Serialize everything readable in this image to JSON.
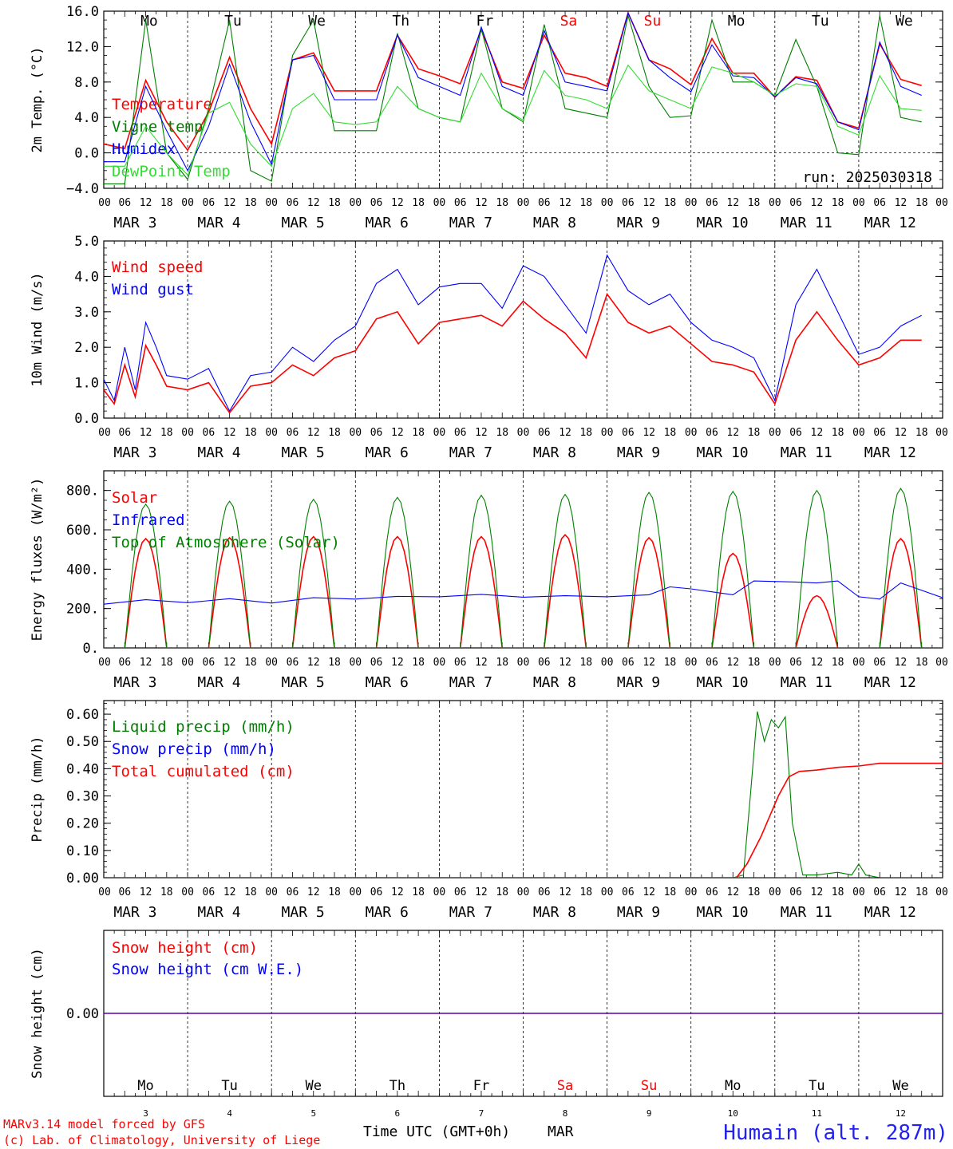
{
  "footer": {
    "model_line": "MARv3.14 model forced by GFS",
    "lab_line": "(c) Lab. of Climatology, University of Liege",
    "time_axis_label": "Time UTC (GMT+0h)",
    "month_label": "MAR",
    "station": "Humain (alt. 287m)"
  },
  "run_label": "run: 2025030318",
  "colors": {
    "red": "#ff0000",
    "green": "#008000",
    "blue": "#0000ff",
    "lightgreen": "#33dd33",
    "grid": "#000000",
    "station": "#2222ee"
  },
  "days": {
    "labels": [
      "Mo",
      "Tu",
      "We",
      "Th",
      "Fr",
      "Sa",
      "Su",
      "Mo",
      "Tu",
      "We"
    ],
    "weekend": [
      false,
      false,
      false,
      false,
      false,
      true,
      true,
      false,
      false,
      false
    ],
    "dates": [
      "MAR 3",
      "MAR 4",
      "MAR 5",
      "MAR 6",
      "MAR 7",
      "MAR 8",
      "MAR 9",
      "MAR 10",
      "MAR 11",
      "MAR 12"
    ],
    "day_numbers": [
      "3",
      "4",
      "5",
      "6",
      "7",
      "8",
      "9",
      "10",
      "11",
      "12"
    ],
    "hour_ticks": [
      "00",
      "06",
      "12",
      "18"
    ]
  },
  "chart_data": [
    {
      "type": "line",
      "ylabel": "2m Temp. (°C)",
      "ylim": [
        -4,
        16
      ],
      "yticks": [
        "−4.0",
        "0.0",
        "4.0",
        "8.0",
        "12.0",
        "16.0"
      ],
      "x_unit": "hours since MAR 3 00 UTC",
      "legend_position": "left",
      "series": [
        {
          "name": "Temperature",
          "color": "red",
          "x": [
            0,
            6,
            12,
            18,
            24,
            30,
            36,
            42,
            48,
            54,
            60,
            66,
            72,
            78,
            84,
            90,
            96,
            102,
            108,
            114,
            120,
            126,
            132,
            138,
            144,
            150,
            156,
            162,
            168,
            174,
            180,
            186,
            192,
            198,
            204,
            210,
            216,
            222,
            228,
            234
          ],
          "y": [
            1,
            0.5,
            8.2,
            3.5,
            0.3,
            4.6,
            10.8,
            5,
            1,
            10.5,
            11.3,
            7,
            7,
            7,
            13.3,
            9.5,
            8.7,
            7.8,
            13.9,
            8,
            7.3,
            13.3,
            9,
            8.5,
            7.5,
            15.8,
            10.5,
            9.5,
            7.7,
            12.9,
            9,
            9,
            6.3,
            8.6,
            8.2,
            3.5,
            2.8,
            12.3,
            8.3,
            7.6
          ]
        },
        {
          "name": "Vigne temp",
          "color": "green",
          "x": [
            0,
            6,
            12,
            18,
            24,
            30,
            36,
            42,
            48,
            54,
            60,
            66,
            72,
            78,
            84,
            90,
            96,
            102,
            108,
            114,
            120,
            126,
            132,
            138,
            144,
            150,
            156,
            162,
            168,
            174,
            180,
            186,
            192,
            198,
            204,
            210,
            216,
            222,
            228,
            234
          ],
          "y": [
            -3.5,
            -3.5,
            15,
            0,
            -3,
            5,
            15,
            -2,
            -3.2,
            11,
            15,
            2.5,
            2.5,
            2.5,
            13.5,
            5,
            4,
            3.5,
            14,
            5,
            3.5,
            14.5,
            5,
            4.5,
            4,
            15.5,
            7.5,
            4,
            4.2,
            15,
            8,
            8,
            6.5,
            12.8,
            7.5,
            0,
            -0.2,
            15.5,
            4,
            3.5
          ]
        },
        {
          "name": "Humidex",
          "color": "blue",
          "x": [
            0,
            6,
            12,
            18,
            24,
            30,
            36,
            42,
            48,
            54,
            60,
            66,
            72,
            78,
            84,
            90,
            96,
            102,
            108,
            114,
            120,
            126,
            132,
            138,
            144,
            150,
            156,
            162,
            168,
            174,
            180,
            186,
            192,
            198,
            204,
            210,
            216,
            222,
            228,
            234
          ],
          "y": [
            -1,
            -1,
            7.5,
            2.5,
            -2,
            3,
            10,
            3.5,
            -1.3,
            10.5,
            11,
            6,
            6,
            6,
            13.3,
            8.5,
            7.5,
            6.5,
            14.2,
            7.5,
            6.5,
            13.8,
            8,
            7.5,
            7,
            15.8,
            10.5,
            8.5,
            6.9,
            12.2,
            8.7,
            8.5,
            6.3,
            8.5,
            7.8,
            3.5,
            2.6,
            12.5,
            7.5,
            6.5
          ]
        },
        {
          "name": "DewPoint Temp",
          "color": "lightgreen",
          "x": [
            0,
            6,
            12,
            18,
            24,
            30,
            36,
            42,
            48,
            54,
            60,
            66,
            72,
            78,
            84,
            90,
            96,
            102,
            108,
            114,
            120,
            126,
            132,
            138,
            144,
            150,
            156,
            162,
            168,
            174,
            180,
            186,
            192,
            198,
            204,
            210,
            216,
            222,
            228,
            234
          ],
          "y": [
            -1.5,
            -1.5,
            3,
            0,
            -2.5,
            4.5,
            5.7,
            1,
            -1.5,
            5,
            6.7,
            3.5,
            3.2,
            3.5,
            7.5,
            5,
            4,
            3.5,
            9,
            5,
            3.7,
            9.3,
            6.5,
            6,
            5,
            9.9,
            7,
            6,
            5,
            9.7,
            9,
            8,
            6.5,
            7.8,
            7.5,
            3,
            2,
            8.7,
            5,
            4.8
          ]
        }
      ]
    },
    {
      "type": "line",
      "ylabel": "10m Wind (m/s)",
      "ylim": [
        0,
        5
      ],
      "yticks": [
        "0.0",
        "1.0",
        "2.0",
        "3.0",
        "4.0",
        "5.0"
      ],
      "x_unit": "hours since MAR 3 00 UTC",
      "legend_position": "left",
      "series": [
        {
          "name": "Wind speed",
          "color": "red",
          "x": [
            0,
            3,
            6,
            9,
            12,
            15,
            18,
            24,
            30,
            36,
            42,
            48,
            54,
            60,
            66,
            72,
            78,
            84,
            90,
            96,
            102,
            108,
            114,
            120,
            126,
            132,
            138,
            144,
            150,
            156,
            162,
            168,
            174,
            180,
            186,
            192,
            198,
            204,
            210,
            216,
            222,
            228,
            234
          ],
          "y": [
            0.8,
            0.4,
            1.5,
            0.6,
            2.05,
            1.5,
            0.9,
            0.8,
            1,
            0.15,
            0.9,
            1,
            1.5,
            1.2,
            1.7,
            1.9,
            2.8,
            3,
            2.1,
            2.7,
            2.8,
            2.9,
            2.6,
            3.3,
            2.8,
            2.4,
            1.7,
            3.5,
            2.7,
            2.4,
            2.6,
            2.1,
            1.6,
            1.5,
            1.3,
            0.4,
            2.2,
            3,
            2.2,
            1.5,
            1.7,
            2.2,
            2.2
          ]
        },
        {
          "name": "Wind gust",
          "color": "blue",
          "x": [
            0,
            3,
            6,
            9,
            12,
            15,
            18,
            24,
            30,
            36,
            42,
            48,
            54,
            60,
            66,
            72,
            78,
            84,
            90,
            96,
            102,
            108,
            114,
            120,
            126,
            132,
            138,
            144,
            150,
            156,
            162,
            168,
            174,
            180,
            186,
            192,
            198,
            204,
            210,
            216,
            222,
            228,
            234
          ],
          "y": [
            1.1,
            0.5,
            2,
            0.8,
            2.7,
            2,
            1.2,
            1.1,
            1.4,
            0.2,
            1.2,
            1.3,
            2,
            1.6,
            2.2,
            2.6,
            3.8,
            4.2,
            3.2,
            3.7,
            3.8,
            3.8,
            3.1,
            4.3,
            4,
            3.2,
            2.4,
            4.6,
            3.6,
            3.2,
            3.5,
            2.7,
            2.2,
            2,
            1.7,
            0.5,
            3.2,
            4.2,
            3,
            1.8,
            2,
            2.6,
            2.9
          ]
        }
      ]
    },
    {
      "type": "line",
      "ylabel": "Energy fluxes (W/m²)",
      "ylim": [
        0,
        900
      ],
      "yticks": [
        "0.",
        "200.",
        "400.",
        "600.",
        "800."
      ],
      "x_unit": "hours since MAR 3 00 UTC",
      "legend_position": "left",
      "series": [
        {
          "name": "Solar",
          "color": "red",
          "peaks": [
            {
              "hour": 12,
              "value": 555
            },
            {
              "hour": 36,
              "value": 560
            },
            {
              "hour": 60,
              "value": 565
            },
            {
              "hour": 84,
              "value": 565
            },
            {
              "hour": 108,
              "value": 565
            },
            {
              "hour": 132,
              "value": 575
            },
            {
              "hour": 156,
              "value": 560
            },
            {
              "hour": 180,
              "value": 480
            },
            {
              "hour": 204,
              "value": 265
            },
            {
              "hour": 228,
              "value": 555
            }
          ]
        },
        {
          "name": "Infrared",
          "color": "blue",
          "x": [
            0,
            12,
            24,
            36,
            48,
            60,
            72,
            84,
            96,
            108,
            120,
            132,
            144,
            156,
            162,
            168,
            180,
            186,
            198,
            204,
            210,
            216,
            222,
            228,
            240
          ],
          "y": [
            222,
            245,
            230,
            250,
            228,
            255,
            248,
            262,
            260,
            272,
            258,
            265,
            260,
            270,
            310,
            300,
            270,
            340,
            335,
            330,
            340,
            260,
            248,
            330,
            255
          ]
        },
        {
          "name": "Top of Atmosphere (Solar)",
          "color": "green",
          "peaks": [
            {
              "hour": 12,
              "value": 730
            },
            {
              "hour": 36,
              "value": 745
            },
            {
              "hour": 60,
              "value": 755
            },
            {
              "hour": 84,
              "value": 765
            },
            {
              "hour": 108,
              "value": 775
            },
            {
              "hour": 132,
              "value": 780
            },
            {
              "hour": 156,
              "value": 790
            },
            {
              "hour": 180,
              "value": 795
            },
            {
              "hour": 204,
              "value": 800
            },
            {
              "hour": 228,
              "value": 810
            }
          ]
        }
      ]
    },
    {
      "type": "line",
      "ylabel": "Precip (mm/h)",
      "ylim": [
        0,
        0.65
      ],
      "yticks": [
        "0.00",
        "0.10",
        "0.20",
        "0.30",
        "0.40",
        "0.50",
        "0.60"
      ],
      "x_unit": "hours since MAR 3 00 UTC",
      "legend_position": "left",
      "series": [
        {
          "name": "Liquid precip (mm/h)",
          "color": "green",
          "x": [
            0,
            180,
            183,
            185,
            187,
            189,
            191,
            193,
            195,
            197,
            200,
            204,
            210,
            214,
            216,
            218,
            222,
            240
          ],
          "y": [
            0,
            0,
            0.01,
            0.3,
            0.61,
            0.5,
            0.58,
            0.55,
            0.59,
            0.2,
            0.01,
            0.01,
            0.02,
            0.01,
            0.05,
            0.01,
            0,
            0
          ]
        },
        {
          "name": "Snow precip (mm/h)",
          "color": "blue",
          "x": [
            0,
            240
          ],
          "y": [
            0,
            0
          ]
        },
        {
          "name": "Total cumulated (cm)",
          "color": "red",
          "x": [
            0,
            181,
            184,
            188,
            193,
            196,
            199,
            204,
            210,
            216,
            222,
            240
          ],
          "y": [
            0,
            0,
            0.05,
            0.15,
            0.3,
            0.37,
            0.39,
            0.395,
            0.405,
            0.41,
            0.42,
            0.42
          ]
        }
      ]
    },
    {
      "type": "line",
      "ylabel": "Snow height (cm)",
      "yticks": [
        "0.00"
      ],
      "x_unit": "hours since MAR 3 00 UTC",
      "legend_position": "left",
      "series": [
        {
          "name": "Snow height (cm)",
          "color": "red",
          "x": [
            0,
            240
          ],
          "y": [
            0,
            0
          ]
        },
        {
          "name": "Snow height (cm W.E.)",
          "color": "blue",
          "x": [
            0,
            240
          ],
          "y": [
            0,
            0
          ]
        }
      ]
    }
  ]
}
